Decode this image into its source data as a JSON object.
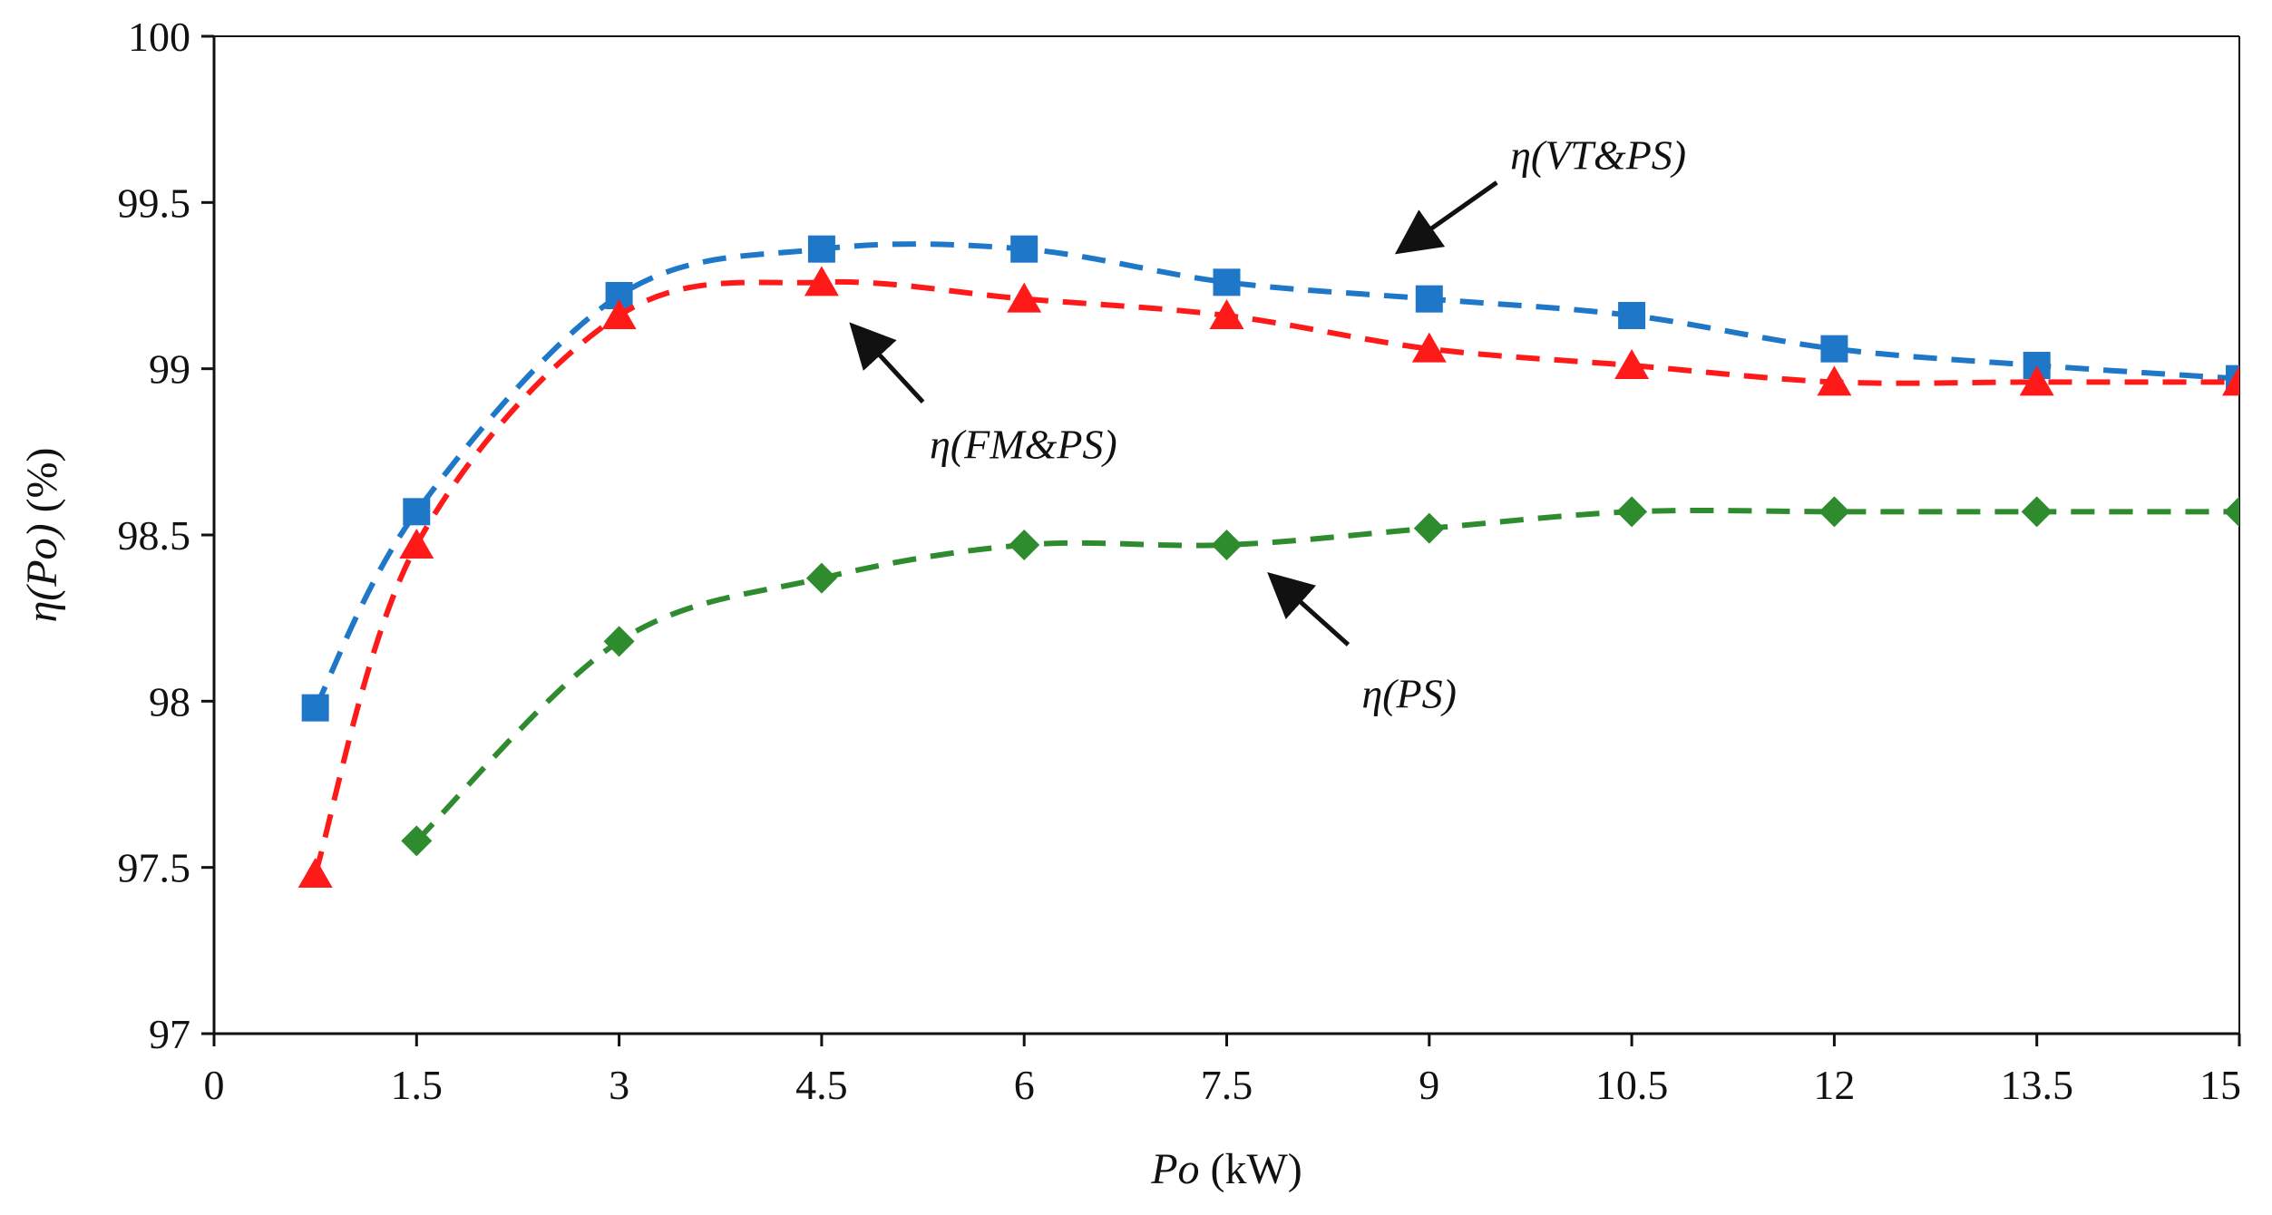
{
  "chart_data": {
    "type": "line",
    "title": "",
    "xlabel_var": "Po",
    "xlabel_unit": " (kW)",
    "ylabel_var": "η(Po)",
    "ylabel_unit": " (%)",
    "xlim": [
      0,
      15
    ],
    "ylim": [
      97,
      100
    ],
    "xticks": [
      {
        "value": 0,
        "label": "0"
      },
      {
        "value": 1.5,
        "label": "1.5"
      },
      {
        "value": 3,
        "label": "3"
      },
      {
        "value": 4.5,
        "label": "4.5"
      },
      {
        "value": 6,
        "label": "6"
      },
      {
        "value": 7.5,
        "label": "7.5"
      },
      {
        "value": 9,
        "label": "9"
      },
      {
        "value": 10.5,
        "label": "10.5"
      },
      {
        "value": 12,
        "label": "12"
      },
      {
        "value": 13.5,
        "label": "13.5"
      },
      {
        "value": 15,
        "label": "15"
      }
    ],
    "yticks": [
      {
        "value": 97,
        "label": "97"
      },
      {
        "value": 97.5,
        "label": "97.5"
      },
      {
        "value": 98,
        "label": "98"
      },
      {
        "value": 98.5,
        "label": "98.5"
      },
      {
        "value": 99,
        "label": "99"
      },
      {
        "value": 99.5,
        "label": "99.5"
      },
      {
        "value": 100,
        "label": "100"
      }
    ],
    "grid": false,
    "series": [
      {
        "name": "η(VT&PS)",
        "color": "#1f77c8",
        "marker": "square",
        "x": [
          0.75,
          1.5,
          3,
          4.5,
          6,
          7.5,
          9,
          10.5,
          12,
          13.5,
          15
        ],
        "y": [
          97.98,
          98.57,
          99.22,
          99.36,
          99.36,
          99.26,
          99.21,
          99.16,
          99.06,
          99.01,
          98.97
        ]
      },
      {
        "name": "η(FM&PS)",
        "color": "#ff1a1a",
        "marker": "triangle",
        "x": [
          0.75,
          1.5,
          3,
          4.5,
          6,
          7.5,
          9,
          10.5,
          12,
          13.5,
          15
        ],
        "y": [
          97.48,
          98.47,
          99.16,
          99.26,
          99.21,
          99.16,
          99.06,
          99.01,
          98.96,
          98.96,
          98.96
        ]
      },
      {
        "name": "η(PS)",
        "color": "#2e8b2e",
        "marker": "diamond",
        "x": [
          1.5,
          3,
          4.5,
          6,
          7.5,
          9,
          10.5,
          12,
          13.5,
          15
        ],
        "y": [
          97.58,
          98.18,
          98.37,
          98.47,
          98.47,
          98.52,
          98.57,
          98.57,
          98.57,
          98.57
        ]
      }
    ],
    "annotations": [
      {
        "text": "η(VT&PS)",
        "series": "η(VT&PS)",
        "arrow_to": [
          8.8,
          99.36
        ],
        "arrow_from": [
          9.5,
          99.56
        ],
        "text_at": [
          9.6,
          99.6
        ]
      },
      {
        "text": "η(FM&PS)",
        "series": "η(FM&PS)",
        "arrow_to": [
          4.75,
          99.12
        ],
        "arrow_from": [
          5.25,
          98.9
        ],
        "text_at": [
          5.3,
          98.73
        ]
      },
      {
        "text": "η(PS)",
        "series": "η(PS)",
        "arrow_to": [
          7.85,
          98.37
        ],
        "arrow_from": [
          8.4,
          98.17
        ],
        "text_at": [
          8.5,
          97.98
        ]
      }
    ]
  }
}
